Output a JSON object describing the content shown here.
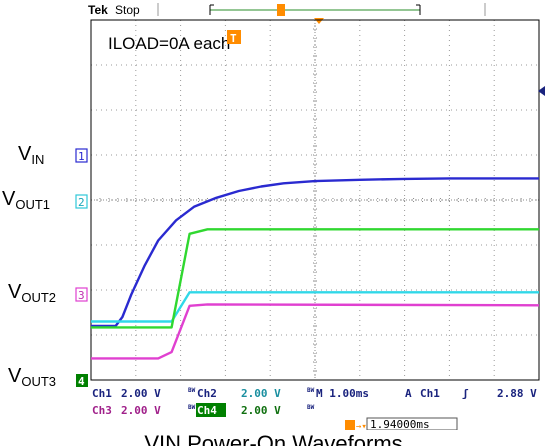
{
  "header": {
    "brand": "Tek",
    "state": "Stop"
  },
  "chart_data": {
    "type": "line",
    "title": "",
    "xlabel": "",
    "ylabel": "",
    "annotation": "ILOAD=0A each",
    "time_per_div": "1.00ms",
    "trigger_delay": "1.94000ms",
    "grid": true,
    "divisions": {
      "x": 10,
      "y": 8
    },
    "series": [
      {
        "name": "VIN",
        "channel": "1",
        "color": "#2a2ad0",
        "points": [
          [
            0,
            1.2
          ],
          [
            0.55,
            1.2
          ],
          [
            0.7,
            1.4
          ],
          [
            0.9,
            1.9
          ],
          [
            1.2,
            2.55
          ],
          [
            1.5,
            3.1
          ],
          [
            1.9,
            3.55
          ],
          [
            2.3,
            3.85
          ],
          [
            2.8,
            4.05
          ],
          [
            3.3,
            4.2
          ],
          [
            3.8,
            4.3
          ],
          [
            4.3,
            4.37
          ],
          [
            5.0,
            4.42
          ],
          [
            6.0,
            4.45
          ],
          [
            7.0,
            4.47
          ],
          [
            8.0,
            4.48
          ],
          [
            9.0,
            4.48
          ],
          [
            10.0,
            4.48
          ]
        ]
      },
      {
        "name": "VOUT1",
        "channel": "2",
        "color": "#30d8e8",
        "points": [
          [
            0,
            1.3
          ],
          [
            1.5,
            1.3
          ],
          [
            1.8,
            1.3
          ],
          [
            2.2,
            1.95
          ],
          [
            2.6,
            1.95
          ],
          [
            10.0,
            1.95
          ]
        ]
      },
      {
        "name": "VOUT2",
        "channel": "3",
        "color": "#e040d0",
        "points": [
          [
            0,
            0.48
          ],
          [
            1.5,
            0.48
          ],
          [
            1.8,
            0.62
          ],
          [
            2.2,
            1.65
          ],
          [
            2.6,
            1.68
          ],
          [
            10.0,
            1.66
          ]
        ]
      },
      {
        "name": "VOUT3",
        "channel": "4",
        "color": "#30d830",
        "points": [
          [
            0,
            1.17
          ],
          [
            1.8,
            1.17
          ],
          [
            2.2,
            3.25
          ],
          [
            2.6,
            3.35
          ],
          [
            3.5,
            3.35
          ],
          [
            10.0,
            3.35
          ]
        ]
      }
    ]
  },
  "labels": {
    "vin": {
      "main": "V",
      "sub": "IN"
    },
    "vout1": {
      "main": "V",
      "sub": "OUT1"
    },
    "vout2": {
      "main": "V",
      "sub": "OUT2"
    },
    "vout3": {
      "main": "V",
      "sub": "OUT3"
    }
  },
  "markers": {
    "ch1": "1",
    "ch2": "2",
    "ch3": "3",
    "ch4": "4",
    "trigger": "T"
  },
  "readout": {
    "ch1_name": "Ch1",
    "ch1_scale": "2.00 V",
    "ch2_name": "Ch2",
    "ch2_scale": "2.00 V",
    "ch3_name": "Ch3",
    "ch3_scale": "2.00 V",
    "ch4_name": "Ch4",
    "ch4_scale": "2.00 V",
    "bw": "BW",
    "timebase": "M 1.00ms",
    "acq": "A",
    "trig_src": "Ch1",
    "trig_slope": "ʃ",
    "trig_level": "2.88 V",
    "delay": "1.94000ms"
  },
  "caption": "VIN Power-On Waveforms",
  "colors": {
    "ch1": "#2a2ad0",
    "ch2": "#30d8e8",
    "ch3": "#e040d0",
    "ch4": "#30d830",
    "trigger": "#ff8c00",
    "ch4_bg": "#008000"
  }
}
